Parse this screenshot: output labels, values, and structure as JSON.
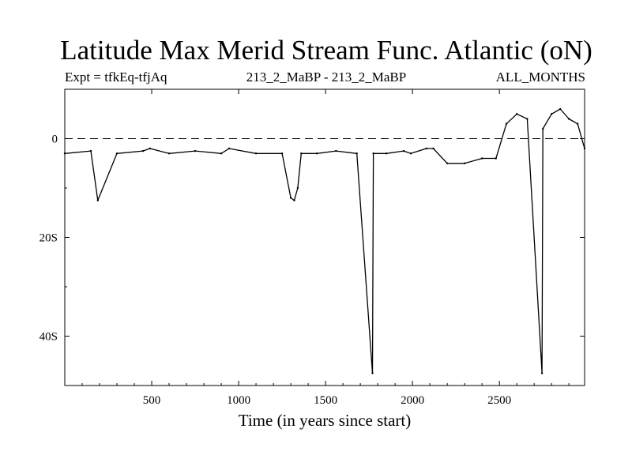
{
  "chart_data": {
    "type": "line",
    "title": "Latitude Max Merid Stream Func. Atlantic (oN)",
    "subtitle_left": "Expt = tfkEq-tfjAq",
    "subtitle_center": "213_2_MaBP - 213_2_MaBP",
    "subtitle_right": "ALL_MONTHS",
    "xlabel": "Time (in years since start)",
    "ylabel": "",
    "xlim": [
      0,
      2990
    ],
    "ylim": [
      -50,
      10
    ],
    "x_ticks": [
      {
        "value": 500,
        "label": "500"
      },
      {
        "value": 1000,
        "label": "1000"
      },
      {
        "value": 1500,
        "label": "1500"
      },
      {
        "value": 2000,
        "label": "2000"
      },
      {
        "value": 2500,
        "label": "2500"
      }
    ],
    "y_ticks": [
      {
        "value": 0,
        "label": "0"
      },
      {
        "value": -20,
        "label": "20S"
      },
      {
        "value": -40,
        "label": "40S"
      }
    ],
    "reference_line": {
      "y": 0,
      "style": "dashed"
    },
    "grid": false,
    "series": [
      {
        "color": "#000000",
        "x": [
          0,
          150,
          190,
          300,
          450,
          490,
          600,
          750,
          900,
          945,
          1100,
          1250,
          1300,
          1320,
          1340,
          1360,
          1450,
          1560,
          1680,
          1770,
          1775,
          1850,
          1950,
          1990,
          2080,
          2120,
          2200,
          2300,
          2400,
          2480,
          2540,
          2600,
          2660,
          2745,
          2750,
          2800,
          2850,
          2900,
          2950,
          2990
        ],
        "y": [
          -3,
          -2.5,
          -12.5,
          -3,
          -2.5,
          -2,
          -3,
          -2.5,
          -3,
          -2,
          -3,
          -3,
          -12,
          -12.5,
          -10,
          -3,
          -3,
          -2.5,
          -3,
          -47.5,
          -3,
          -3,
          -2.5,
          -3,
          -2,
          -2,
          -5,
          -5,
          -4,
          -4,
          3,
          5,
          4,
          -47.5,
          2,
          5,
          6,
          4,
          3,
          -2
        ]
      }
    ]
  }
}
